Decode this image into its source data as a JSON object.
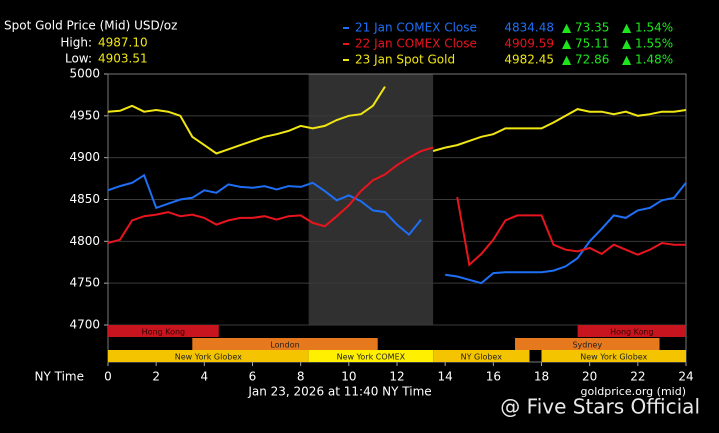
{
  "chart_data": {
    "type": "line",
    "title": "Spot Gold Price (Mid) USD/oz",
    "high_label": "High:",
    "high": {
      "value": 4987.1,
      "label": "4987.10"
    },
    "low_label": "Low:",
    "low": 4903.51,
    "x_label": "NY Time",
    "date_label": "Jan 23, 2026 at 11:40 NY Time",
    "source": "goldprice.org (mid)",
    "watermark": "@ Five Stars Official",
    "xlim": [
      0,
      24
    ],
    "xticks": [
      0,
      2,
      4,
      6,
      8,
      10,
      12,
      14,
      16,
      18,
      20,
      22,
      24
    ],
    "ylim": [
      4700,
      5000
    ],
    "yticks": [
      4700,
      4750,
      4800,
      4850,
      4900,
      4950,
      5000
    ],
    "grid": true,
    "shade": [
      8.33,
      13.5
    ],
    "x": [
      0,
      0.5,
      1,
      1.5,
      2,
      2.5,
      3,
      3.5,
      4,
      4.5,
      5,
      5.5,
      6,
      6.5,
      7,
      7.5,
      8,
      8.5,
      9,
      9.5,
      10,
      10.5,
      11,
      11.5,
      12,
      12.5,
      13,
      13.5,
      14,
      14.5,
      15,
      15.5,
      16,
      16.5,
      17,
      17.5,
      18,
      18.5,
      19,
      19.5,
      20,
      20.5,
      21,
      21.5,
      22,
      22.5,
      23,
      23.5,
      24
    ],
    "series": [
      {
        "name": "21 Jan COMEX Close",
        "color": "#1e6ff5",
        "close": 4834.48,
        "change": "▲ 73.35",
        "change_pct": "▲ 1.54%",
        "values": [
          4861,
          4866,
          4870,
          4879,
          4840,
          4845,
          4850,
          4852,
          4861,
          4858,
          4868,
          4865,
          4864,
          4866,
          4862,
          4866,
          4865,
          4870,
          4860,
          4849,
          4855,
          4848,
          4837,
          4835,
          4820,
          4808,
          4826,
          null,
          4760,
          4758,
          4754,
          4750,
          4762,
          4763,
          4763,
          4763,
          4763,
          4765,
          4770,
          4780,
          4800,
          4815,
          4831,
          4828,
          4837,
          4840,
          4849,
          4852,
          4870
        ]
      },
      {
        "name": "22 Jan COMEX Close",
        "color": "#e8141e",
        "close": 4909.59,
        "change": "▲ 75.11",
        "change_pct": "▲ 1.55%",
        "values": [
          4798,
          4802,
          4825,
          4830,
          4832,
          4835,
          4830,
          4832,
          4828,
          4820,
          4825,
          4828,
          4828,
          4830,
          4826,
          4830,
          4831,
          4822,
          4818,
          4830,
          4843,
          4860,
          4873,
          4880,
          4891,
          4900,
          4908,
          4912,
          null,
          4853,
          4772,
          4785,
          4802,
          4825,
          4831,
          4831,
          4831,
          4796,
          4790,
          4788,
          4792,
          4785,
          4796,
          4790,
          4784,
          4790,
          4798,
          4796,
          4796
        ]
      },
      {
        "name": "23 Jan Spot Gold",
        "color": "#f0e614",
        "close": 4982.45,
        "change": "▲ 72.86",
        "change_pct": "▲ 1.48%",
        "values": [
          4955,
          4956,
          4962,
          4955,
          4957,
          4955,
          4950,
          4925,
          4915,
          4905,
          4910,
          4915,
          4920,
          4925,
          4928,
          4932,
          4938,
          4935,
          4938,
          4945,
          4950,
          4952,
          4962,
          4985,
          null,
          null,
          null,
          4908,
          4912,
          4915,
          4920,
          4925,
          4928,
          4935,
          4935,
          4935,
          4935,
          4942,
          4950,
          4958,
          4955,
          4955,
          4952,
          4955,
          4950,
          4952,
          4955,
          4955,
          4957
        ]
      }
    ],
    "sessions": [
      {
        "name": "Hong Kong",
        "start": 0,
        "end": 4.6,
        "row": 0,
        "color": "#c8141e"
      },
      {
        "name": "Hong Kong",
        "start": 19.5,
        "end": 24,
        "row": 0,
        "color": "#c8141e"
      },
      {
        "name": "London",
        "start": 3.5,
        "end": 11.2,
        "row": 1,
        "color": "#e6781e"
      },
      {
        "name": "Sydney",
        "start": 16.9,
        "end": 22.9,
        "row": 1,
        "color": "#e6781e"
      },
      {
        "name": "New York Globex",
        "start": 0,
        "end": 8.33,
        "row": 2,
        "color": "#f5c400"
      },
      {
        "name": "New York COMEX",
        "start": 8.33,
        "end": 13.5,
        "row": 2,
        "color": "#fff000"
      },
      {
        "name": "NY Globex",
        "start": 13.5,
        "end": 17.5,
        "row": 2,
        "color": "#f5c400"
      },
      {
        "name": "New York Globex",
        "start": 18,
        "end": 24,
        "row": 2,
        "color": "#f5c400"
      }
    ]
  }
}
